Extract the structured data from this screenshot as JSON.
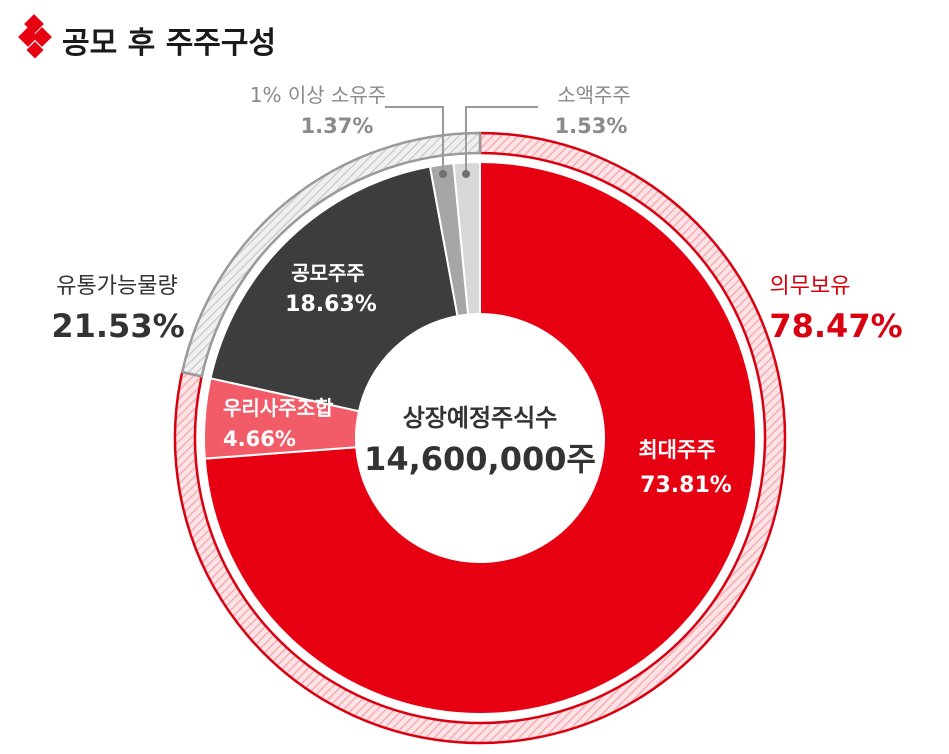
{
  "title": "공모 후 주주구성",
  "colors": {
    "red": "#e60012",
    "pink": "#f25c68",
    "dark": "#3d3d3d",
    "gray": "#a6a6a6",
    "light_gray": "#d7d7d7",
    "accent_red": "#d9000f",
    "ring_gray": "#9a9a9a"
  },
  "chart_data": {
    "type": "pie",
    "center_label": "상장예정주식수",
    "center_value": "14,600,000주",
    "slices": [
      {
        "label": "최대주주",
        "value": 73.81,
        "display": "73.81%",
        "color": "#e60012"
      },
      {
        "label": "우리사주조합",
        "value": 4.66,
        "display": "4.66%",
        "color": "#f25c68"
      },
      {
        "label": "공모주주",
        "value": 18.63,
        "display": "18.63%",
        "color": "#3d3d3d"
      },
      {
        "label": "1% 이상 소유주",
        "value": 1.37,
        "display": "1.37%",
        "color": "#a6a6a6"
      },
      {
        "label": "소액주주",
        "value": 1.53,
        "display": "1.53%",
        "color": "#d7d7d7"
      }
    ],
    "groups": [
      {
        "label": "의무보유",
        "value": 78.47,
        "display": "78.47%",
        "color": "#d9000f"
      },
      {
        "label": "유통가능물량",
        "value": 21.53,
        "display": "21.53%",
        "color": "#9a9a9a"
      }
    ]
  }
}
